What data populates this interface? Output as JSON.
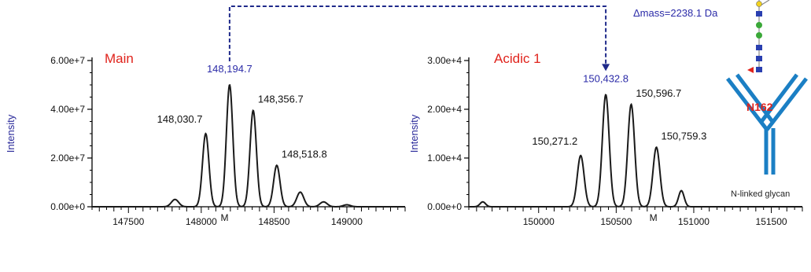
{
  "chart_data": [
    {
      "type": "line",
      "panel_label": "Main",
      "ylabel": "Intensity",
      "xlim": [
        147250,
        149400
      ],
      "ylim": [
        0,
        60000000
      ],
      "y_ticks": [
        0,
        20000000,
        40000000,
        60000000
      ],
      "y_tick_labels": [
        "0.00e+0",
        "2.00e+7",
        "4.00e+7",
        "6.00e+7"
      ],
      "x_ticks": [
        147500,
        148000,
        148500,
        149000
      ],
      "x_tick_labels": [
        "147500",
        "148000",
        "148500",
        "149000"
      ],
      "m_marker": {
        "x": 148160,
        "label": "M"
      },
      "baseline": 0,
      "peaks": [
        {
          "x": 147820,
          "y": 3000000,
          "w": 25
        },
        {
          "x": 148030.7,
          "y": 30000000,
          "w": 22,
          "label": "148,030.7"
        },
        {
          "x": 148194.7,
          "y": 50000000,
          "w": 22,
          "label": "148,194.7",
          "highlight": true
        },
        {
          "x": 148356.7,
          "y": 39500000,
          "w": 22,
          "label": "148,356.7"
        },
        {
          "x": 148518.8,
          "y": 17000000,
          "w": 22,
          "label": "148,518.8"
        },
        {
          "x": 148680,
          "y": 6000000,
          "w": 24
        },
        {
          "x": 148840,
          "y": 2000000,
          "w": 25
        },
        {
          "x": 149000,
          "y": 800000,
          "w": 25
        }
      ]
    },
    {
      "type": "line",
      "panel_label": "Acidic 1",
      "ylabel": "Intensity",
      "xlim": [
        149550,
        151700
      ],
      "ylim": [
        0,
        30000
      ],
      "y_ticks": [
        0,
        10000,
        20000,
        30000
      ],
      "y_tick_labels": [
        "0.00e+0",
        "1.00e+4",
        "2.00e+4",
        "3.00e+4"
      ],
      "x_ticks": [
        150000,
        150500,
        151000,
        151500
      ],
      "x_tick_labels": [
        "150000",
        "150500",
        "151000",
        "151500"
      ],
      "m_marker": {
        "x": 150740,
        "label": "M"
      },
      "baseline": 0,
      "peaks": [
        {
          "x": 149640,
          "y": 1000,
          "w": 18
        },
        {
          "x": 150271.2,
          "y": 10500,
          "w": 22,
          "label": "150,271.2"
        },
        {
          "x": 150432.8,
          "y": 23000,
          "w": 22,
          "label": "150,432.8",
          "highlight": true
        },
        {
          "x": 150596.7,
          "y": 21000,
          "w": 22,
          "label": "150,596.7"
        },
        {
          "x": 150759.3,
          "y": 12200,
          "w": 22,
          "label": "150,759.3"
        },
        {
          "x": 150920,
          "y": 3300,
          "w": 18
        }
      ]
    }
  ],
  "annotation": {
    "delta_mass": "Δmass=2238.1 Da"
  },
  "glycan_diagram": {
    "site_label": "N162",
    "caption": "N-linked glycan"
  },
  "colors": {
    "axis": "#000000",
    "curve": "#1a1a1a",
    "panel_label": "#e0231c",
    "highlight": "#2b2ba8",
    "ylabel": "#2a2a9a",
    "antibody": "#1b7fc4",
    "site": "#e0231c"
  }
}
